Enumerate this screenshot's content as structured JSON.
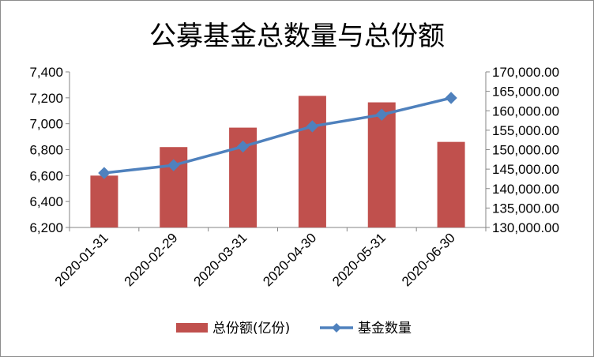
{
  "chart_data": {
    "type": "bar+line",
    "title": "公募基金总数量与总份额",
    "categories": [
      "2020-01-31",
      "2020-02-29",
      "2020-03-31",
      "2020-04-30",
      "2020-05-31",
      "2020-06-30"
    ],
    "series": [
      {
        "name": "总份额(亿份)",
        "type": "bar",
        "axis": "left",
        "color": "#c0504d",
        "values": [
          6600,
          6820,
          6970,
          7215,
          7165,
          6860
        ]
      },
      {
        "name": "基金数量",
        "type": "line",
        "axis": "right",
        "color": "#4f81bd",
        "marker": "diamond",
        "values": [
          144000,
          146000,
          150800,
          156000,
          159000,
          163300
        ]
      }
    ],
    "y_left": {
      "ylim": [
        6200,
        7400
      ],
      "ticks": [
        6200,
        6400,
        6600,
        6800,
        7000,
        7200,
        7400
      ],
      "tick_labels": [
        "6,200",
        "6,400",
        "6,600",
        "6,800",
        "7,000",
        "7,200",
        "7,400"
      ]
    },
    "y_right": {
      "ylim": [
        130000,
        170000
      ],
      "ticks": [
        130000,
        135000,
        140000,
        145000,
        150000,
        155000,
        160000,
        165000,
        170000
      ],
      "tick_labels": [
        "130,000.00",
        "135,000.00",
        "140,000.00",
        "145,000.00",
        "150,000.00",
        "155,000.00",
        "160,000.00",
        "165,000.00",
        "170,000.00"
      ]
    },
    "grid": false,
    "legend": "bottom"
  }
}
